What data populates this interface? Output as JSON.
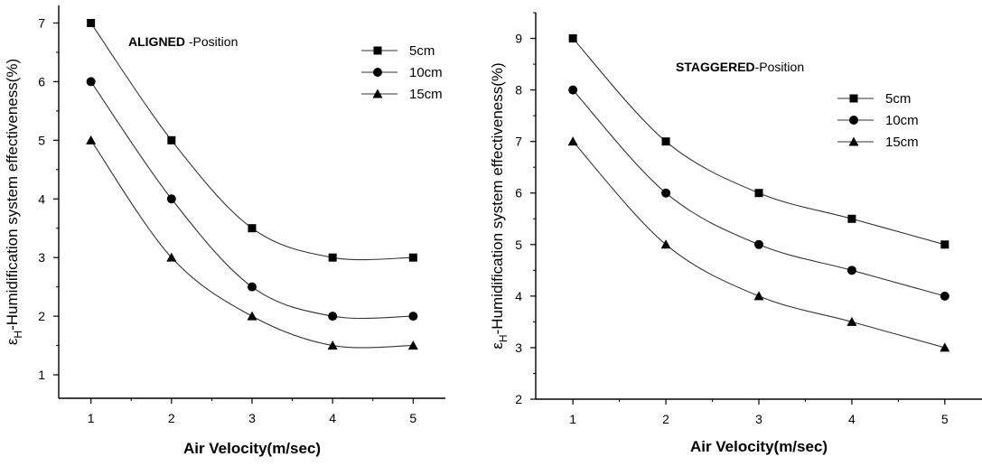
{
  "chart_data": [
    {
      "type": "line",
      "title": "",
      "annotation": {
        "bold": "ALIGNED",
        "rest": " -Position"
      },
      "xlabel": "Air Velocity(m/sec)",
      "ylabel": {
        "symbol": "ε",
        "subscript": "H",
        "rest": "-Humidification system effectiveness(%)"
      },
      "x": [
        1,
        2,
        3,
        4,
        5
      ],
      "xlim": [
        0.6,
        5.4
      ],
      "ylim": [
        0.6,
        7.3
      ],
      "xticks": [
        1,
        2,
        3,
        4,
        5
      ],
      "yticks": [
        1,
        2,
        3,
        4,
        5,
        6,
        7
      ],
      "grid": false,
      "legend_position": "top-right",
      "series": [
        {
          "name": "5cm",
          "marker": "square",
          "values": [
            7,
            5,
            3.5,
            3,
            3
          ]
        },
        {
          "name": "10cm",
          "marker": "circle",
          "values": [
            6,
            4,
            2.5,
            2,
            2
          ]
        },
        {
          "name": "15cm",
          "marker": "triangle",
          "values": [
            5,
            3,
            2,
            1.5,
            1.5
          ]
        }
      ]
    },
    {
      "type": "line",
      "title": "",
      "annotation": {
        "bold": "STAGGERED",
        "rest": "-Position"
      },
      "xlabel": "Air Velocity(m/sec)",
      "ylabel": {
        "symbol": "ε",
        "subscript": "H",
        "rest": "-Humidification system effectiveness(%)"
      },
      "x": [
        1,
        2,
        3,
        4,
        5
      ],
      "xlim": [
        0.6,
        5.4
      ],
      "ylim": [
        2,
        9.5
      ],
      "xticks": [
        1,
        2,
        3,
        4,
        5
      ],
      "yticks": [
        2,
        3,
        4,
        5,
        6,
        7,
        8,
        9
      ],
      "grid": false,
      "legend_position": "top-right",
      "series": [
        {
          "name": "5cm",
          "marker": "square",
          "values": [
            9,
            7,
            6,
            5.5,
            5
          ]
        },
        {
          "name": "10cm",
          "marker": "circle",
          "values": [
            8,
            6,
            5,
            4.5,
            4
          ]
        },
        {
          "name": "15cm",
          "marker": "triangle",
          "values": [
            7,
            5,
            4,
            3.5,
            3
          ]
        }
      ]
    }
  ]
}
